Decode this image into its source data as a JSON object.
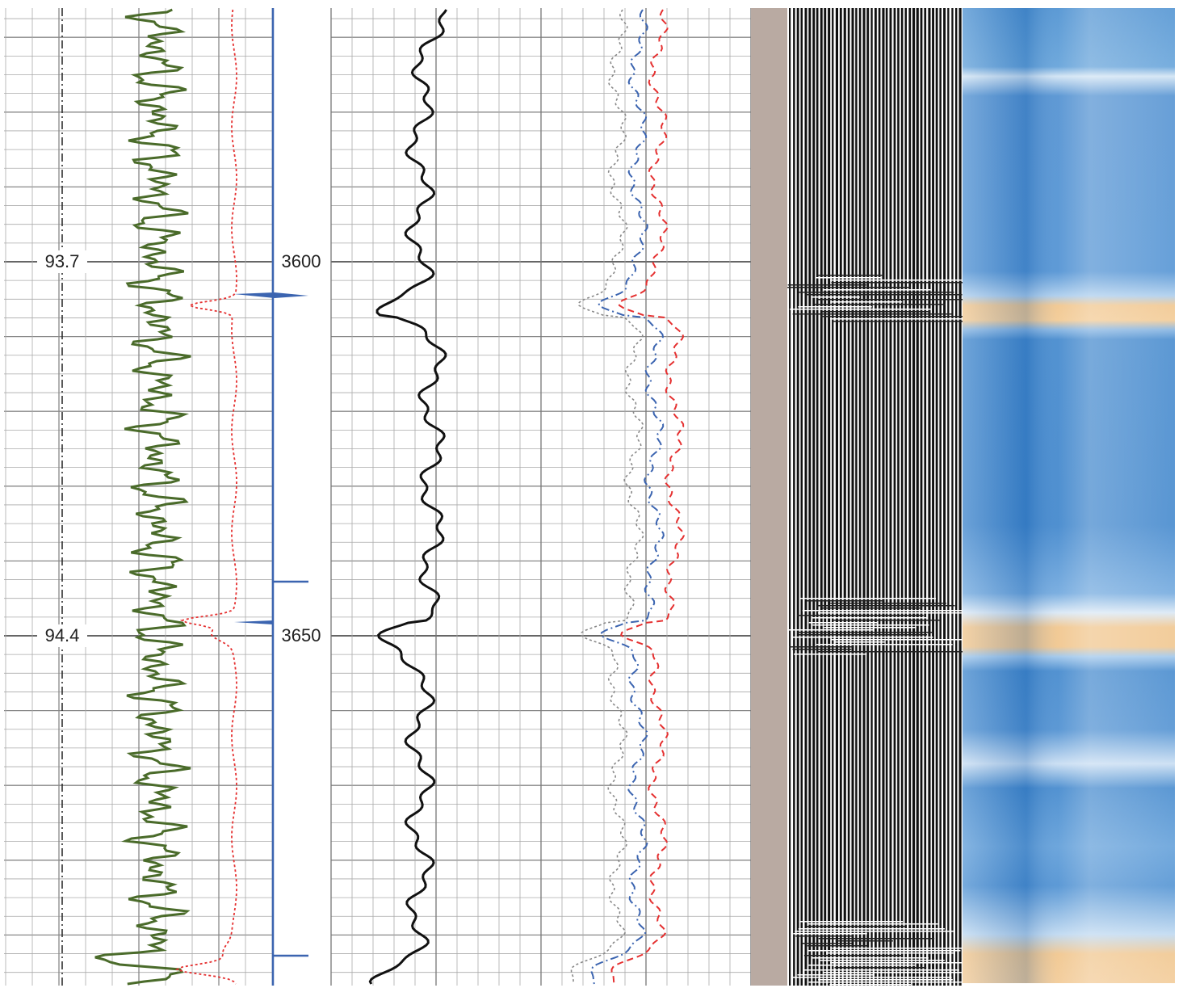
{
  "track1": {
    "left_labels": [
      "93.7",
      "94.4"
    ],
    "depth_labels": [
      "3600",
      "3650"
    ]
  }
}
